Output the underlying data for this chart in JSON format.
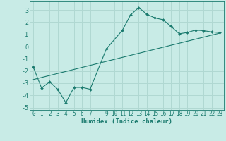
{
  "xlabel": "Humidex (Indice chaleur)",
  "background_color": "#c8ebe6",
  "line_color": "#1a7a6e",
  "grid_color": "#b0d8d2",
  "xlim": [
    -0.5,
    23.5
  ],
  "ylim": [
    -5.2,
    3.7
  ],
  "xticks": [
    0,
    1,
    2,
    3,
    4,
    5,
    6,
    7,
    9,
    10,
    11,
    12,
    13,
    14,
    15,
    16,
    17,
    18,
    19,
    20,
    21,
    22,
    23
  ],
  "yticks": [
    -5,
    -4,
    -3,
    -2,
    -1,
    0,
    1,
    2,
    3
  ],
  "series1_x": [
    0,
    1,
    2,
    3,
    4,
    5,
    6,
    7,
    9,
    11,
    12,
    13,
    14,
    15,
    16,
    17,
    18,
    19,
    20,
    21,
    22,
    23
  ],
  "series1_y": [
    -1.7,
    -3.4,
    -2.9,
    -3.5,
    -4.6,
    -3.35,
    -3.35,
    -3.5,
    -0.2,
    1.35,
    2.6,
    3.2,
    2.65,
    2.35,
    2.2,
    1.65,
    1.05,
    1.15,
    1.35,
    1.3,
    1.2,
    1.15
  ],
  "series2_x": [
    0,
    23
  ],
  "series2_y": [
    -2.7,
    1.1
  ]
}
